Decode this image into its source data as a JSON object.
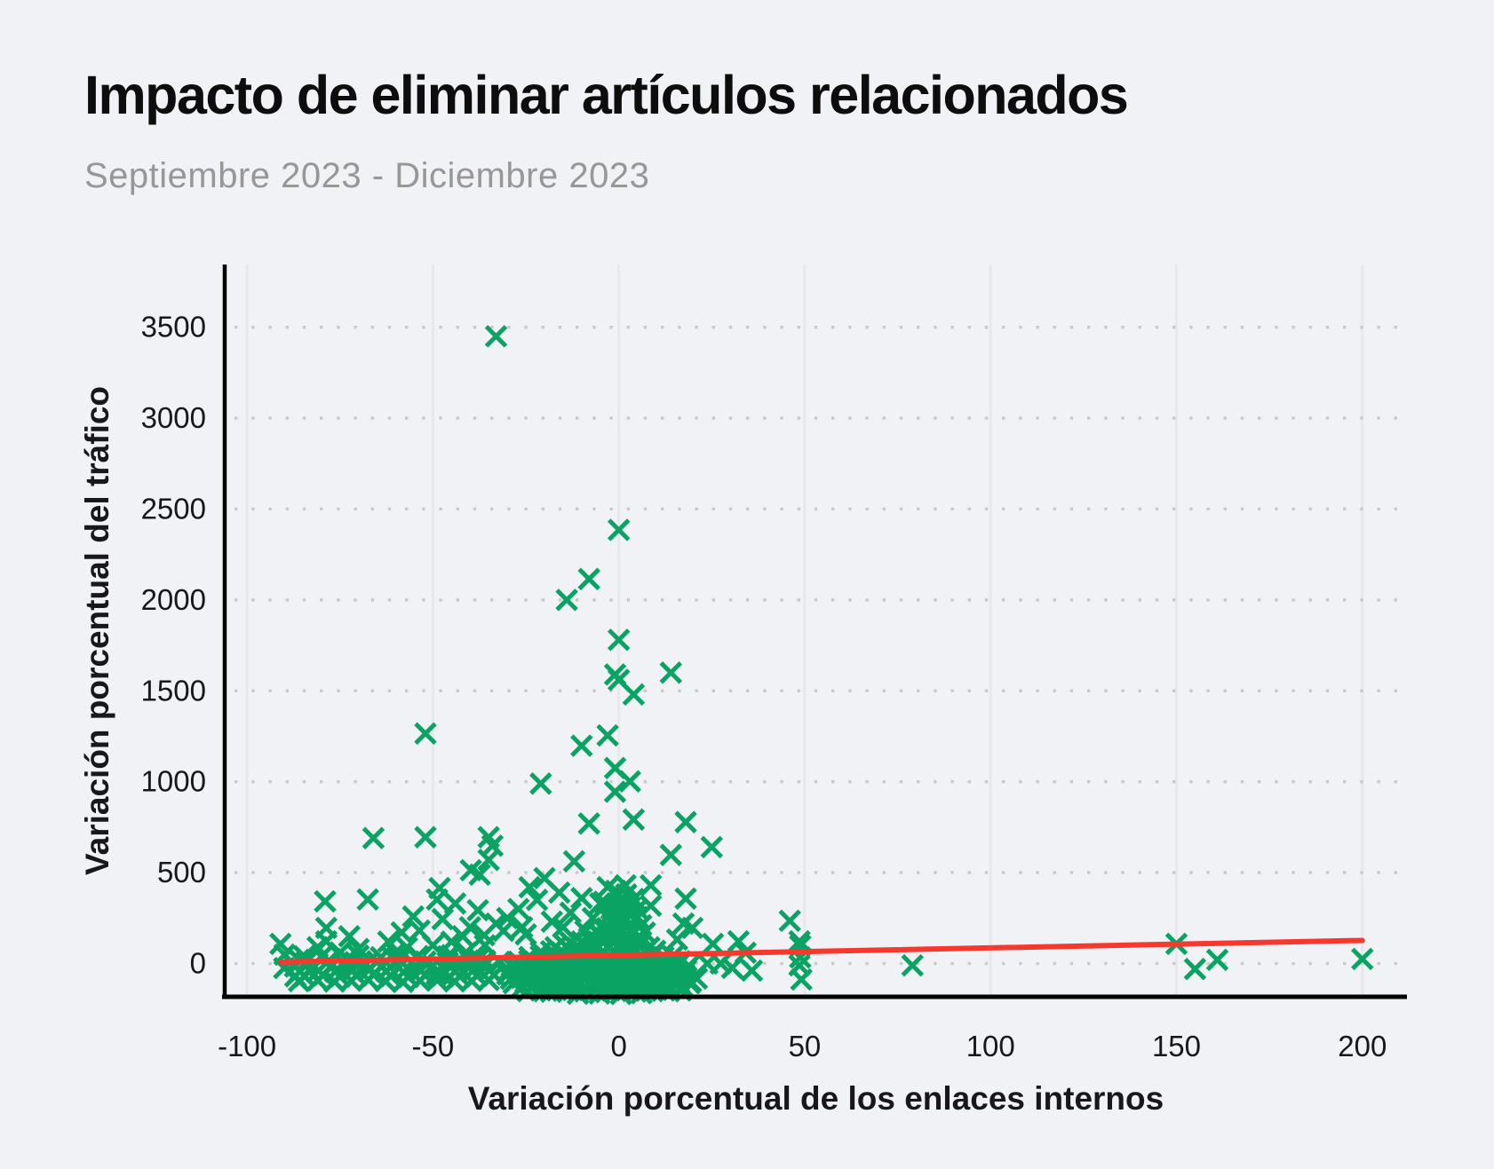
{
  "page": {
    "background": "#f1f2f6"
  },
  "header": {
    "title": "Impacto de eliminar artículos relacionados",
    "subtitle": "Septiembre 2023 - Diciembre 2023"
  },
  "chart_data": {
    "type": "scatter",
    "title": "Impacto de eliminar artículos relacionados",
    "subtitle": "Septiembre 2023 - Diciembre 2023",
    "xlabel": "Variación porcentual de los enlaces internos",
    "ylabel": "Variación porcentual del tráfico",
    "xlim": [
      -106,
      212
    ],
    "ylim": [
      -183,
      3845
    ],
    "x_ticks": [
      -100,
      -50,
      0,
      50,
      100,
      150,
      200
    ],
    "y_ticks": [
      0,
      500,
      1000,
      1500,
      2000,
      2500,
      3000,
      3500
    ],
    "grid": {
      "horizontal": "dotted",
      "vertical": "solid",
      "h_color": "#c9c9cb",
      "v_color": "#e7e8eb"
    },
    "marker": {
      "shape": "x",
      "color": "#0aa364",
      "size": 22,
      "stroke_width": 5
    },
    "trendline": {
      "color": "#f5392f",
      "width": 6,
      "x1": -91,
      "y1": 8,
      "x2": 200,
      "y2": 127
    },
    "axis_color": "#000000",
    "tick_label_color": "#17171c",
    "points": [
      [
        -33,
        3450
      ],
      [
        0,
        2385
      ],
      [
        -8,
        2115
      ],
      [
        -14,
        2000
      ],
      [
        0,
        1780
      ],
      [
        -1,
        1590
      ],
      [
        0,
        1560
      ],
      [
        14,
        1600
      ],
      [
        4,
        1480
      ],
      [
        -3,
        1255
      ],
      [
        -52,
        1265
      ],
      [
        -10,
        1198
      ],
      [
        -1,
        1075
      ],
      [
        3,
        1002
      ],
      [
        -21,
        990
      ],
      [
        -1,
        945
      ],
      [
        4,
        792
      ],
      [
        18,
        778
      ],
      [
        -8,
        770
      ],
      [
        25,
        640
      ],
      [
        14,
        597
      ],
      [
        -66,
        690
      ],
      [
        -52,
        695
      ],
      [
        -35,
        695
      ],
      [
        -34,
        648
      ],
      [
        -35,
        570
      ],
      [
        -12,
        562
      ],
      [
        -39.8,
        513
      ],
      [
        -37.4,
        489
      ],
      [
        -48.2,
        415
      ],
      [
        8.6,
        430
      ],
      [
        18,
        357
      ],
      [
        8.6,
        318
      ],
      [
        17.4,
        220
      ],
      [
        19.8,
        196
      ],
      [
        15.7,
        132
      ],
      [
        25.3,
        108
      ],
      [
        32.2,
        122
      ],
      [
        34.1,
        59
      ],
      [
        27.4,
        0
      ],
      [
        30.5,
        -24
      ],
      [
        35.8,
        -39
      ],
      [
        46,
        235
      ],
      [
        48.6,
        122
      ],
      [
        48.8,
        98
      ],
      [
        48.8,
        34
      ],
      [
        48.6,
        -10
      ],
      [
        49.1,
        -88
      ],
      [
        79,
        -10
      ],
      [
        150,
        108
      ],
      [
        155,
        -30
      ],
      [
        161,
        20
      ],
      [
        200,
        25
      ],
      [
        11.4,
        -59
      ],
      [
        14.3,
        -98
      ],
      [
        19.1,
        -108
      ],
      [
        9.5,
        -122
      ],
      [
        16.7,
        -147
      ],
      [
        15,
        0
      ],
      [
        23.8,
        0
      ],
      [
        -91,
        108
      ],
      [
        -90,
        -25
      ],
      [
        -79,
        342
      ],
      [
        -78.7,
        196
      ],
      [
        -78.7,
        122
      ],
      [
        -72.5,
        150
      ],
      [
        -67.5,
        352
      ],
      [
        -58.4,
        171
      ],
      [
        -55.3,
        259
      ],
      [
        -53.6,
        181
      ],
      [
        -48.9,
        352
      ],
      [
        -47.4,
        244
      ],
      [
        -37.9,
        293
      ],
      [
        -36.2,
        156
      ],
      [
        -57,
        88
      ],
      [
        -84.6,
        39
      ],
      [
        -89.9,
        49
      ],
      [
        -62,
        120
      ],
      [
        -70,
        80
      ],
      [
        -75,
        60
      ],
      [
        -81,
        90
      ],
      [
        -86,
        20
      ],
      [
        -60,
        60
      ],
      [
        -50,
        100
      ],
      [
        -44,
        330
      ],
      [
        -64,
        35
      ],
      [
        -73,
        25
      ],
      [
        -68,
        -5
      ],
      [
        -83,
        -40
      ],
      [
        -87,
        -70
      ],
      [
        -20,
        470
      ],
      [
        -24,
        420
      ],
      [
        -16,
        390
      ],
      [
        -10,
        360
      ],
      [
        -5,
        330
      ],
      [
        -2,
        300
      ],
      [
        -27,
        300
      ],
      [
        -13,
        280
      ],
      [
        -7,
        250
      ],
      [
        -18,
        230
      ],
      [
        -30,
        250
      ],
      [
        -3,
        420
      ],
      [
        2,
        380
      ],
      [
        5,
        300
      ],
      [
        -22,
        350
      ],
      [
        -26,
        200
      ],
      [
        -31,
        180
      ],
      [
        -15,
        200
      ],
      [
        -9,
        180
      ],
      [
        -25,
        160
      ],
      [
        -33,
        220
      ],
      [
        -40,
        200
      ],
      [
        -42,
        150
      ],
      [
        -45,
        120
      ],
      [
        -36,
        100
      ],
      [
        -41,
        60
      ],
      [
        -38,
        20
      ],
      [
        -43,
        -20
      ],
      [
        -46,
        40
      ],
      [
        -49,
        -60
      ],
      [
        -2.5,
        170
      ],
      [
        0,
        185
      ],
      [
        2,
        200
      ],
      [
        -1,
        215
      ],
      [
        1.5,
        235
      ],
      [
        -3,
        255
      ],
      [
        0.5,
        270
      ],
      [
        2.5,
        290
      ],
      [
        -1.5,
        310
      ],
      [
        0,
        330
      ],
      [
        1,
        355
      ],
      [
        -0.5,
        375
      ],
      [
        2,
        160
      ],
      [
        -1,
        160
      ],
      [
        3,
        180
      ],
      [
        -3.2,
        195
      ],
      [
        1,
        250
      ],
      [
        -2,
        240
      ],
      [
        0,
        300
      ],
      [
        3,
        310
      ],
      [
        -0.8,
        400
      ],
      [
        1.8,
        430
      ],
      [
        4,
        355
      ],
      [
        -4,
        340
      ],
      [
        5,
        255
      ],
      [
        6,
        210
      ],
      [
        7,
        170
      ],
      [
        5.5,
        150
      ],
      [
        -5,
        160
      ],
      [
        -6,
        175
      ],
      [
        -24.5,
        -152
      ],
      [
        -21,
        -148
      ],
      [
        -18.2,
        -155
      ],
      [
        -15,
        -150
      ],
      [
        -12.4,
        -146
      ],
      [
        -9.1,
        -153
      ],
      [
        -6.3,
        -149
      ],
      [
        -3.5,
        -157
      ],
      [
        -0.8,
        -151
      ],
      [
        2.1,
        -147
      ],
      [
        4.6,
        -154
      ],
      [
        7.3,
        -150
      ],
      [
        10.2,
        -145
      ],
      [
        13.5,
        -152
      ],
      [
        16.7,
        -148
      ],
      [
        -26,
        -130
      ],
      [
        -23.2,
        -125
      ],
      [
        -20.5,
        -132
      ],
      [
        -17.8,
        -127
      ],
      [
        -14.6,
        -122
      ],
      [
        -11.9,
        -129
      ],
      [
        -9.2,
        -133
      ],
      [
        -6.5,
        -126
      ],
      [
        -3.1,
        -124
      ],
      [
        -0.4,
        -131
      ],
      [
        2.4,
        -128
      ],
      [
        5.1,
        -123
      ],
      [
        7.9,
        -130
      ],
      [
        10.6,
        -126
      ],
      [
        13.8,
        -132
      ],
      [
        17.1,
        -127
      ],
      [
        -28.3,
        -108
      ],
      [
        -25.1,
        -103
      ],
      [
        -22.4,
        -110
      ],
      [
        -19.2,
        -105
      ],
      [
        -16.5,
        -100
      ],
      [
        -13.3,
        -107
      ],
      [
        -10.6,
        -112
      ],
      [
        -7.4,
        -104
      ],
      [
        -4.7,
        -102
      ],
      [
        -1.5,
        -109
      ],
      [
        1.2,
        -106
      ],
      [
        4.4,
        -101
      ],
      [
        7.1,
        -108
      ],
      [
        10.3,
        -104
      ],
      [
        13,
        -110
      ],
      [
        16.2,
        -105
      ],
      [
        19.4,
        -100
      ],
      [
        -29,
        -84
      ],
      [
        -26.3,
        -79
      ],
      [
        -23.6,
        -86
      ],
      [
        -20.4,
        -81
      ],
      [
        -17.7,
        -76
      ],
      [
        -14.5,
        -83
      ],
      [
        -11.8,
        -88
      ],
      [
        -8.6,
        -80
      ],
      [
        -5.9,
        -78
      ],
      [
        -2.7,
        -85
      ],
      [
        0,
        -82
      ],
      [
        3.2,
        -77
      ],
      [
        5.9,
        -84
      ],
      [
        9.1,
        -80
      ],
      [
        11.8,
        -86
      ],
      [
        15,
        -81
      ],
      [
        18.2,
        -76
      ],
      [
        21,
        -83
      ],
      [
        -30,
        -60
      ],
      [
        -27.2,
        -55
      ],
      [
        -24.4,
        -62
      ],
      [
        -21.6,
        -57
      ],
      [
        -18.8,
        -52
      ],
      [
        -16,
        -59
      ],
      [
        -13.2,
        -64
      ],
      [
        -10.4,
        -56
      ],
      [
        -7.6,
        -54
      ],
      [
        -4.8,
        -61
      ],
      [
        -2,
        -58
      ],
      [
        0.8,
        -53
      ],
      [
        3.6,
        -60
      ],
      [
        6.4,
        -56
      ],
      [
        9.2,
        -62
      ],
      [
        12,
        -57
      ],
      [
        14.8,
        -52
      ],
      [
        17.6,
        -59
      ],
      [
        -29.5,
        -37
      ],
      [
        -26.7,
        -32
      ],
      [
        -23.9,
        -39
      ],
      [
        -21.1,
        -34
      ],
      [
        -18.3,
        -29
      ],
      [
        -15.5,
        -36
      ],
      [
        -12.7,
        -41
      ],
      [
        -9.9,
        -33
      ],
      [
        -7.1,
        -31
      ],
      [
        -4.3,
        -38
      ],
      [
        -1.5,
        -35
      ],
      [
        1.3,
        -30
      ],
      [
        4.1,
        -37
      ],
      [
        6.9,
        -33
      ],
      [
        9.7,
        -39
      ],
      [
        12.5,
        -34
      ],
      [
        15.3,
        -29
      ],
      [
        18.1,
        -36
      ],
      [
        -28.8,
        -14
      ],
      [
        -26,
        -9
      ],
      [
        -23.2,
        -16
      ],
      [
        -20.4,
        -11
      ],
      [
        -17.6,
        -6
      ],
      [
        -14.8,
        -13
      ],
      [
        -12,
        -18
      ],
      [
        -9.2,
        -10
      ],
      [
        -6.4,
        -8
      ],
      [
        -3.6,
        -15
      ],
      [
        -0.8,
        -12
      ],
      [
        2,
        -7
      ],
      [
        4.8,
        -14
      ],
      [
        7.6,
        -10
      ],
      [
        10.4,
        -16
      ],
      [
        13.2,
        -11
      ],
      [
        16,
        -6
      ],
      [
        18.8,
        -13
      ],
      [
        -27,
        10
      ],
      [
        -24.1,
        15
      ],
      [
        -21.2,
        8
      ],
      [
        -18.3,
        13
      ],
      [
        -15.4,
        18
      ],
      [
        -12.5,
        11
      ],
      [
        -9.6,
        6
      ],
      [
        -6.7,
        14
      ],
      [
        -3.8,
        16
      ],
      [
        -0.9,
        9
      ],
      [
        2,
        12
      ],
      [
        4.9,
        17
      ],
      [
        7.8,
        10
      ],
      [
        10.7,
        14
      ],
      [
        13.6,
        8
      ],
      [
        16.5,
        13
      ],
      [
        -24,
        36
      ],
      [
        -21,
        41
      ],
      [
        -18,
        34
      ],
      [
        -15,
        39
      ],
      [
        -12,
        44
      ],
      [
        -9,
        37
      ],
      [
        -6,
        32
      ],
      [
        -3,
        40
      ],
      [
        0,
        42
      ],
      [
        3,
        35
      ],
      [
        6,
        38
      ],
      [
        9,
        43
      ],
      [
        12,
        36
      ],
      [
        14.5,
        40
      ],
      [
        -21,
        63
      ],
      [
        -18.2,
        68
      ],
      [
        -15.4,
        61
      ],
      [
        -12.6,
        66
      ],
      [
        -9.8,
        71
      ],
      [
        -7,
        64
      ],
      [
        -4.2,
        59
      ],
      [
        -1.4,
        67
      ],
      [
        1.4,
        69
      ],
      [
        4.2,
        62
      ],
      [
        7,
        65
      ],
      [
        9.8,
        70
      ],
      [
        -17,
        90
      ],
      [
        -14.2,
        95
      ],
      [
        -11.4,
        88
      ],
      [
        -8.6,
        93
      ],
      [
        -5.8,
        98
      ],
      [
        -3,
        91
      ],
      [
        -0.2,
        86
      ],
      [
        2.6,
        94
      ],
      [
        5.4,
        96
      ],
      [
        8.2,
        89
      ],
      [
        -13,
        116
      ],
      [
        -10,
        121
      ],
      [
        -7,
        114
      ],
      [
        -4,
        119
      ],
      [
        -1,
        124
      ],
      [
        2,
        117
      ],
      [
        5,
        112
      ],
      [
        -8,
        140
      ],
      [
        -4.5,
        145
      ],
      [
        -1,
        138
      ],
      [
        2.5,
        143
      ],
      [
        -5.2,
        -165
      ],
      [
        0.6,
        -168
      ],
      [
        6.1,
        -163
      ],
      [
        -11,
        -166
      ],
      [
        -86,
        -97
      ],
      [
        -81,
        -92
      ],
      [
        -76.5,
        -99
      ],
      [
        -72,
        -94
      ],
      [
        -67.4,
        -89
      ],
      [
        -62.8,
        -96
      ],
      [
        -58.1,
        -101
      ],
      [
        -53.5,
        -93
      ],
      [
        -48.9,
        -91
      ],
      [
        -44.2,
        -98
      ],
      [
        -39.6,
        -95
      ],
      [
        -35,
        -90
      ],
      [
        -84.5,
        -70
      ],
      [
        -79.5,
        -65
      ],
      [
        -75,
        -72
      ],
      [
        -70.5,
        -67
      ],
      [
        -65.9,
        -62
      ],
      [
        -61.3,
        -69
      ],
      [
        -56.6,
        -74
      ],
      [
        -52,
        -66
      ],
      [
        -47.4,
        -64
      ],
      [
        -42.7,
        -71
      ],
      [
        -38.1,
        -68
      ],
      [
        -33.5,
        -63
      ],
      [
        -85.8,
        -44
      ],
      [
        -80.8,
        -39
      ],
      [
        -76.3,
        -46
      ],
      [
        -71.8,
        -41
      ],
      [
        -67.2,
        -36
      ],
      [
        -62.6,
        -43
      ],
      [
        -57.9,
        -48
      ],
      [
        -53.3,
        -40
      ],
      [
        -48.7,
        -38
      ],
      [
        -44,
        -45
      ],
      [
        -39.4,
        -42
      ],
      [
        -34.8,
        -37
      ],
      [
        -87.1,
        -17
      ],
      [
        -82.1,
        -12
      ],
      [
        -77.6,
        -19
      ],
      [
        -73.1,
        -14
      ],
      [
        -68.5,
        -9
      ],
      [
        -63.9,
        -16
      ],
      [
        -59.2,
        -21
      ],
      [
        -54.6,
        -13
      ],
      [
        -50,
        -11
      ],
      [
        -45.3,
        -18
      ],
      [
        -40.7,
        -15
      ],
      [
        -36.1,
        -10
      ],
      [
        -84,
        10
      ],
      [
        -78,
        15
      ],
      [
        -71,
        8
      ],
      [
        -65,
        13
      ],
      [
        -59,
        18
      ],
      [
        -52,
        11
      ],
      [
        -46,
        6
      ],
      [
        -40,
        14
      ],
      [
        -36,
        16
      ],
      [
        -32,
        9
      ],
      [
        -80,
        38
      ],
      [
        -70,
        43
      ],
      [
        -61,
        36
      ],
      [
        -54,
        41
      ],
      [
        -45,
        46
      ],
      [
        -38,
        34
      ]
    ]
  }
}
